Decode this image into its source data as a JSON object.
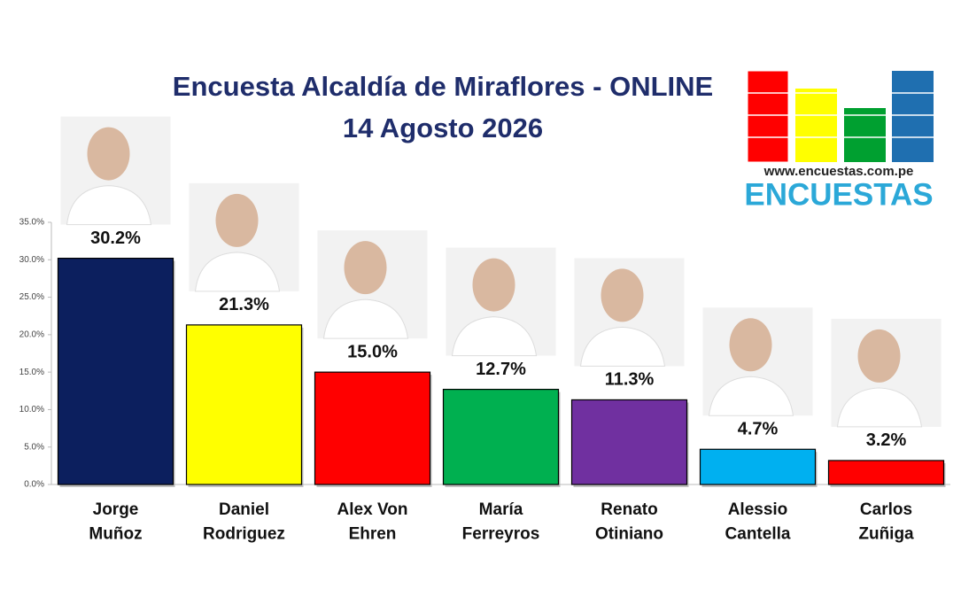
{
  "chart_data": {
    "type": "bar",
    "title": "Encuesta Alcaldía de Miraflores - ONLINE",
    "subtitle": "14 Agosto 2026",
    "categories": [
      "Jorge\nMuñoz",
      "Daniel\nRodriguez",
      "Alex Von\nEhren",
      "María\nFerreyros",
      "Renato\nOtiniano",
      "Alessio\nCantella",
      "Carlos\nZuñiga"
    ],
    "values": [
      30.2,
      21.3,
      15.0,
      12.7,
      11.3,
      4.7,
      3.2
    ],
    "value_labels": [
      "30.2%",
      "21.3%",
      "15.0%",
      "12.7%",
      "11.3%",
      "4.7%",
      "3.2%"
    ],
    "colors": [
      "#0c1f5e",
      "#ffff00",
      "#ff0000",
      "#00b050",
      "#7030a0",
      "#00b0f0",
      "#ff0000"
    ],
    "ylim": [
      0,
      35
    ],
    "yticks": [
      {
        "value": 0,
        "label": "0.0%"
      },
      {
        "value": 5,
        "label": "5.0%"
      },
      {
        "value": 10,
        "label": "10.0%"
      },
      {
        "value": 15,
        "label": "15.0%"
      },
      {
        "value": 20,
        "label": "20.0%"
      },
      {
        "value": 25,
        "label": "25.0%"
      },
      {
        "value": 30,
        "label": "30.0%"
      },
      {
        "value": 35,
        "label": "35.0%"
      }
    ],
    "grid": false
  },
  "logo": {
    "url": "www.encuestas.com.pe",
    "name": "ENCUESTAS"
  }
}
